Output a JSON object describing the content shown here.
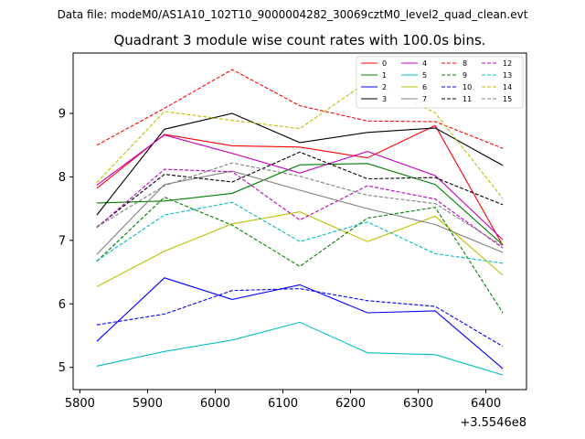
{
  "chart_data": {
    "type": "line",
    "suptitle": "Data file: modeM0/AS1A10_102T10_9000004282_30069cztM0_level2_quad_clean.evt",
    "title": "Quadrant 3 module wise count rates with 100.0s bins.",
    "xlabel": "",
    "ylabel": "",
    "x_offset_label": "+3.5546e8",
    "x": [
      5825,
      5925,
      6025,
      6125,
      6225,
      6325,
      6425
    ],
    "xlim": [
      5790,
      6460
    ],
    "ylim": [
      4.65,
      9.95
    ],
    "xticks": [
      5800,
      5900,
      6000,
      6100,
      6200,
      6300,
      6400
    ],
    "yticks": [
      5,
      6,
      7,
      8,
      9
    ],
    "series": [
      {
        "name": "0",
        "color": "#ff0000",
        "dash": false,
        "values": [
          7.82,
          8.67,
          8.49,
          8.47,
          8.3,
          8.81,
          6.92
        ]
      },
      {
        "name": "1",
        "color": "#008000",
        "dash": false,
        "values": [
          7.59,
          7.62,
          7.74,
          8.19,
          8.21,
          7.88,
          6.93
        ]
      },
      {
        "name": "2",
        "color": "#0000ff",
        "dash": false,
        "values": [
          5.41,
          6.41,
          6.07,
          6.3,
          5.86,
          5.89,
          4.98
        ]
      },
      {
        "name": "3",
        "color": "#000000",
        "dash": false,
        "values": [
          7.4,
          8.75,
          9.0,
          8.54,
          8.7,
          8.77,
          8.18
        ]
      },
      {
        "name": "4",
        "color": "#c000c0",
        "dash": false,
        "values": [
          7.87,
          8.66,
          8.37,
          8.06,
          8.4,
          8.02,
          7.01
        ]
      },
      {
        "name": "5",
        "color": "#00bfbf",
        "dash": false,
        "values": [
          5.02,
          5.25,
          5.43,
          5.71,
          5.23,
          5.2,
          4.88
        ]
      },
      {
        "name": "6",
        "color": "#bfbf00",
        "dash": false,
        "values": [
          6.27,
          6.83,
          7.26,
          7.45,
          6.98,
          7.38,
          6.45
        ]
      },
      {
        "name": "7",
        "color": "#808080",
        "dash": false,
        "values": [
          6.78,
          7.88,
          8.09,
          7.79,
          7.5,
          7.25,
          6.81
        ]
      },
      {
        "name": "8",
        "color": "#ff0000",
        "dash": true,
        "values": [
          8.5,
          9.08,
          9.69,
          9.12,
          8.88,
          8.87,
          8.45
        ]
      },
      {
        "name": "9",
        "color": "#008000",
        "dash": true,
        "values": [
          6.67,
          7.68,
          7.24,
          6.59,
          7.35,
          7.52,
          5.86
        ]
      },
      {
        "name": "10",
        "color": "#0000ff",
        "dash": true,
        "values": [
          5.67,
          5.84,
          6.21,
          6.24,
          6.05,
          5.96,
          5.33
        ]
      },
      {
        "name": "11",
        "color": "#000000",
        "dash": true,
        "values": [
          7.21,
          8.04,
          7.92,
          8.39,
          7.97,
          7.99,
          7.56
        ]
      },
      {
        "name": "12",
        "color": "#c000c0",
        "dash": true,
        "values": [
          7.2,
          8.12,
          8.08,
          7.32,
          7.86,
          7.65,
          6.88
        ]
      },
      {
        "name": "13",
        "color": "#00bfbf",
        "dash": true,
        "values": [
          6.68,
          7.4,
          7.6,
          6.98,
          7.29,
          6.79,
          6.64
        ]
      },
      {
        "name": "14",
        "color": "#bfbf00",
        "dash": true,
        "values": [
          7.91,
          9.03,
          8.89,
          8.76,
          9.5,
          9.01,
          7.66
        ]
      },
      {
        "name": "15",
        "color": "#808080",
        "dash": true,
        "values": [
          7.21,
          7.86,
          8.22,
          8.01,
          7.71,
          7.58,
          6.91
        ]
      }
    ]
  }
}
